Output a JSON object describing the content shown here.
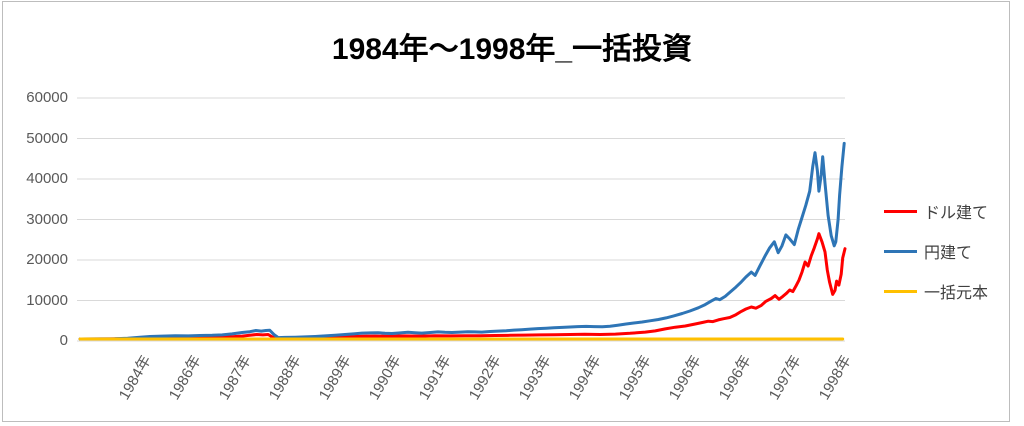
{
  "title": "1984年～1998年_一括投資",
  "chart_data": {
    "type": "line",
    "title": "1984年～1998年_一括投資",
    "grid": true,
    "legend_position": "right",
    "y_axis": {
      "min": 0,
      "max": 60000,
      "step": 10000,
      "tick_labels": [
        "0",
        "10000",
        "20000",
        "30000",
        "40000",
        "50000",
        "60000"
      ]
    },
    "x_axis": {
      "tick_labels": [
        "1984年",
        "1986年",
        "1987年",
        "1988年",
        "1989年",
        "1990年",
        "1991年",
        "1992年",
        "1993年",
        "1994年",
        "1995年",
        "1996年",
        "1996年",
        "1997年",
        "1998年"
      ],
      "x_unit": "percent_across_plot"
    },
    "series": [
      {
        "name": "ドル建て",
        "color": "#FF0000",
        "points": [
          [
            0.4,
            500
          ],
          [
            4.3,
            520
          ],
          [
            6.9,
            600
          ],
          [
            9.5,
            700
          ],
          [
            12.1,
            750
          ],
          [
            14.7,
            800
          ],
          [
            17.3,
            850
          ],
          [
            19.9,
            1000
          ],
          [
            21.5,
            1200
          ],
          [
            22.5,
            1400
          ],
          [
            23.4,
            1600
          ],
          [
            24.2,
            1500
          ],
          [
            24.9,
            1600
          ],
          [
            25.4,
            1000
          ],
          [
            26.2,
            700
          ],
          [
            27.7,
            750
          ],
          [
            29.7,
            800
          ],
          [
            31.6,
            850
          ],
          [
            33.6,
            950
          ],
          [
            35.5,
            1050
          ],
          [
            37.1,
            1150
          ],
          [
            38.8,
            1200
          ],
          [
            40.8,
            1150
          ],
          [
            42.7,
            1250
          ],
          [
            44.7,
            1200
          ],
          [
            46.6,
            1300
          ],
          [
            48.6,
            1250
          ],
          [
            50.5,
            1300
          ],
          [
            52.5,
            1300
          ],
          [
            54.4,
            1350
          ],
          [
            56.4,
            1400
          ],
          [
            58.3,
            1450
          ],
          [
            60.3,
            1500
          ],
          [
            62.2,
            1550
          ],
          [
            64.2,
            1600
          ],
          [
            66.1,
            1650
          ],
          [
            68.1,
            1600
          ],
          [
            70.1,
            1700
          ],
          [
            72.0,
            1900
          ],
          [
            74.0,
            2200
          ],
          [
            75.3,
            2500
          ],
          [
            76.6,
            3000
          ],
          [
            77.9,
            3400
          ],
          [
            79.2,
            3700
          ],
          [
            80.5,
            4200
          ],
          [
            81.5,
            4600
          ],
          [
            82.2,
            4900
          ],
          [
            82.8,
            4800
          ],
          [
            83.5,
            5200
          ],
          [
            84.2,
            5500
          ],
          [
            85.0,
            5800
          ],
          [
            85.8,
            6500
          ],
          [
            86.5,
            7300
          ],
          [
            87.1,
            7900
          ],
          [
            87.8,
            8400
          ],
          [
            88.4,
            8100
          ],
          [
            89.1,
            8800
          ],
          [
            89.7,
            9800
          ],
          [
            90.4,
            10500
          ],
          [
            90.9,
            11200
          ],
          [
            91.4,
            10300
          ],
          [
            91.9,
            11000
          ],
          [
            92.4,
            11800
          ],
          [
            92.8,
            12600
          ],
          [
            93.2,
            12200
          ],
          [
            93.6,
            13500
          ],
          [
            94.0,
            15000
          ],
          [
            94.4,
            17000
          ],
          [
            94.8,
            19500
          ],
          [
            95.2,
            18500
          ],
          [
            95.6,
            21000
          ],
          [
            96.0,
            23000
          ],
          [
            96.4,
            25200
          ],
          [
            96.6,
            26500
          ],
          [
            97.0,
            24500
          ],
          [
            97.4,
            22000
          ],
          [
            97.7,
            17500
          ],
          [
            98.0,
            14500
          ],
          [
            98.4,
            11500
          ],
          [
            98.7,
            12500
          ],
          [
            98.9,
            14800
          ],
          [
            99.2,
            13800
          ],
          [
            99.5,
            16500
          ],
          [
            99.7,
            20500
          ],
          [
            100.0,
            22800
          ]
        ]
      },
      {
        "name": "円建て",
        "color": "#2E75B6",
        "points": [
          [
            0.4,
            500
          ],
          [
            3.0,
            520
          ],
          [
            4.9,
            550
          ],
          [
            6.6,
            700
          ],
          [
            8.2,
            950
          ],
          [
            9.5,
            1100
          ],
          [
            11.1,
            1200
          ],
          [
            12.8,
            1300
          ],
          [
            14.5,
            1250
          ],
          [
            16.0,
            1350
          ],
          [
            17.6,
            1400
          ],
          [
            18.9,
            1500
          ],
          [
            20.2,
            1750
          ],
          [
            21.5,
            2100
          ],
          [
            22.5,
            2300
          ],
          [
            23.3,
            2600
          ],
          [
            24.0,
            2450
          ],
          [
            24.6,
            2600
          ],
          [
            25.1,
            2650
          ],
          [
            25.7,
            1500
          ],
          [
            26.2,
            850
          ],
          [
            27.1,
            900
          ],
          [
            28.4,
            950
          ],
          [
            29.7,
            1000
          ],
          [
            31.0,
            1100
          ],
          [
            32.3,
            1250
          ],
          [
            33.6,
            1400
          ],
          [
            34.9,
            1600
          ],
          [
            36.2,
            1800
          ],
          [
            37.1,
            1950
          ],
          [
            38.2,
            2000
          ],
          [
            39.2,
            2050
          ],
          [
            40.1,
            1900
          ],
          [
            41.0,
            1850
          ],
          [
            42.1,
            2000
          ],
          [
            43.1,
            2150
          ],
          [
            44.0,
            2050
          ],
          [
            44.9,
            1950
          ],
          [
            46.0,
            2100
          ],
          [
            47.0,
            2250
          ],
          [
            47.9,
            2150
          ],
          [
            48.8,
            2100
          ],
          [
            49.9,
            2200
          ],
          [
            50.9,
            2300
          ],
          [
            51.8,
            2250
          ],
          [
            52.7,
            2200
          ],
          [
            53.8,
            2350
          ],
          [
            54.8,
            2450
          ],
          [
            55.9,
            2550
          ],
          [
            56.9,
            2700
          ],
          [
            57.9,
            2800
          ],
          [
            59.0,
            2950
          ],
          [
            60.0,
            3050
          ],
          [
            61.1,
            3150
          ],
          [
            62.1,
            3250
          ],
          [
            63.2,
            3350
          ],
          [
            64.2,
            3450
          ],
          [
            65.2,
            3550
          ],
          [
            66.3,
            3600
          ],
          [
            67.3,
            3550
          ],
          [
            68.4,
            3500
          ],
          [
            69.4,
            3650
          ],
          [
            70.4,
            3900
          ],
          [
            71.5,
            4200
          ],
          [
            72.5,
            4450
          ],
          [
            73.6,
            4700
          ],
          [
            74.6,
            5000
          ],
          [
            75.7,
            5300
          ],
          [
            76.7,
            5700
          ],
          [
            77.7,
            6200
          ],
          [
            78.8,
            6800
          ],
          [
            79.8,
            7400
          ],
          [
            80.9,
            8200
          ],
          [
            81.8,
            9000
          ],
          [
            82.6,
            9900
          ],
          [
            83.2,
            10500
          ],
          [
            83.7,
            10200
          ],
          [
            84.4,
            11000
          ],
          [
            85.0,
            12000
          ],
          [
            85.8,
            13300
          ],
          [
            86.5,
            14600
          ],
          [
            87.1,
            15800
          ],
          [
            87.8,
            17000
          ],
          [
            88.3,
            16200
          ],
          [
            88.9,
            18500
          ],
          [
            89.6,
            21000
          ],
          [
            90.2,
            23000
          ],
          [
            90.8,
            24500
          ],
          [
            91.3,
            21800
          ],
          [
            91.8,
            23500
          ],
          [
            92.3,
            26200
          ],
          [
            92.8,
            25200
          ],
          [
            93.4,
            23800
          ],
          [
            93.9,
            27500
          ],
          [
            94.4,
            30500
          ],
          [
            94.9,
            33500
          ],
          [
            95.4,
            37000
          ],
          [
            95.8,
            43000
          ],
          [
            96.1,
            46500
          ],
          [
            96.4,
            42000
          ],
          [
            96.6,
            37000
          ],
          [
            96.9,
            41000
          ],
          [
            97.1,
            45500
          ],
          [
            97.4,
            39000
          ],
          [
            97.8,
            31000
          ],
          [
            98.2,
            26000
          ],
          [
            98.6,
            23500
          ],
          [
            98.8,
            24500
          ],
          [
            99.1,
            30000
          ],
          [
            99.3,
            36000
          ],
          [
            99.6,
            43000
          ],
          [
            99.9,
            48800
          ]
        ]
      },
      {
        "name": "一括元本",
        "color": "#FFC000",
        "points": [
          [
            0.4,
            500
          ],
          [
            99.7,
            500
          ]
        ]
      }
    ]
  },
  "legend": {
    "items": [
      {
        "label": "ドル建て",
        "color": "#FF0000"
      },
      {
        "label": "円建て",
        "color": "#2E75B6"
      },
      {
        "label": "一括元本",
        "color": "#FFC000"
      }
    ]
  },
  "colors": {
    "red_series": "#FF0000",
    "blue_series": "#2E75B6",
    "gold_series": "#FFC000",
    "gridline": "#D9D9D9",
    "axis_label": "#595959",
    "legend_text": "#404040",
    "frame_border": "#BDBDBD"
  }
}
